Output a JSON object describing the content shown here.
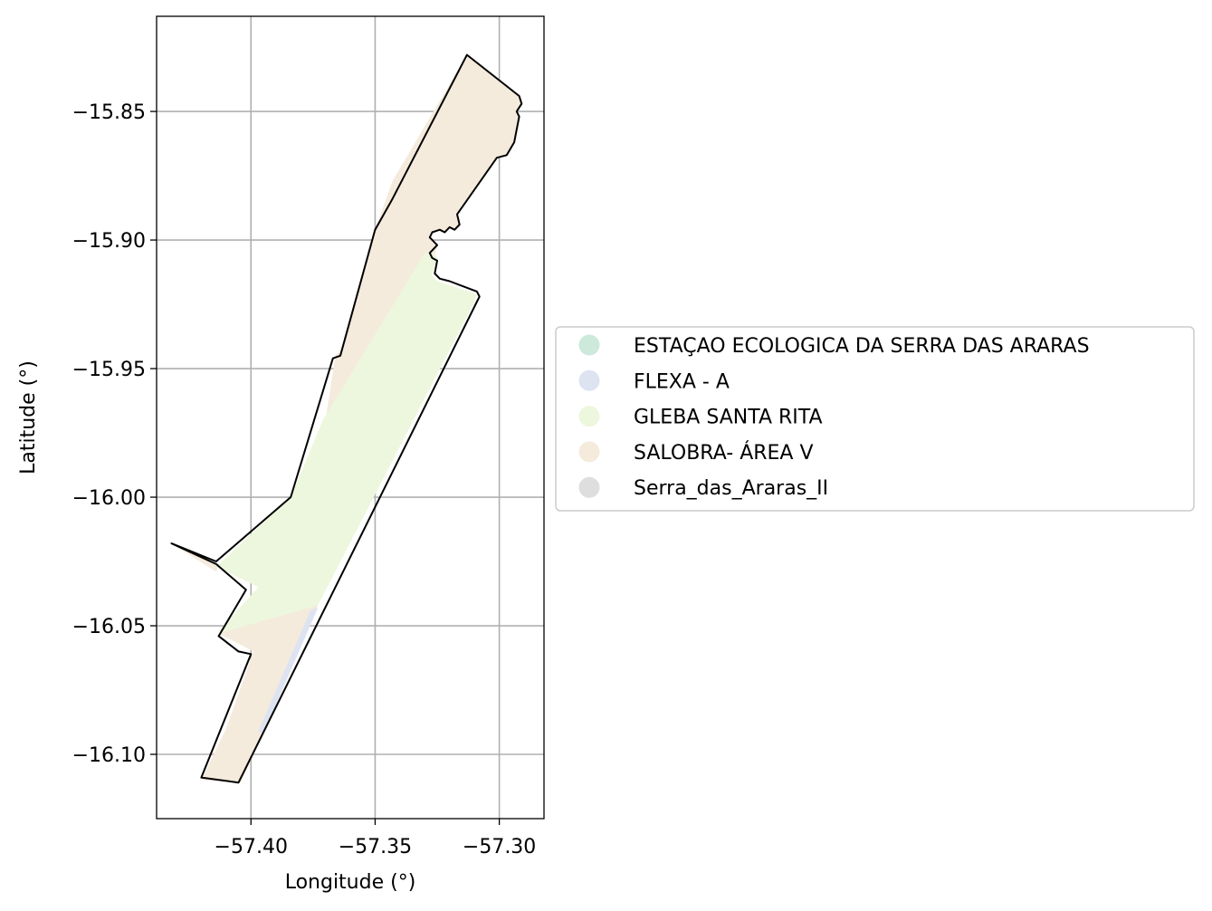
{
  "chart_data": {
    "type": "map",
    "xlabel": "Longitude (°)",
    "ylabel": "Latitude (°)",
    "xlim": [
      -57.438,
      -57.282
    ],
    "ylim": [
      -16.125,
      -15.813
    ],
    "x_ticks": [
      -57.4,
      -57.35,
      -57.3
    ],
    "y_ticks": [
      -15.85,
      -15.9,
      -15.95,
      -16.0,
      -16.05,
      -16.1
    ],
    "x_tick_labels": [
      "−57.40",
      "−57.35",
      "−57.30"
    ],
    "y_tick_labels": [
      "−15.85",
      "−15.90",
      "−15.95",
      "−16.00",
      "−16.05",
      "−16.10"
    ],
    "grid": true,
    "legend_position": "center-right outside",
    "legend": [
      {
        "label": "ESTAÇAO ECOLOGICA DA SERRA DAS ARARAS",
        "color": "#cce9dc"
      },
      {
        "label": "FLEXA - A",
        "color": "#dde3f1"
      },
      {
        "label": "GLEBA SANTA RITA",
        "color": "#edf7dd"
      },
      {
        "label": "SALOBRA- ÁREA V",
        "color": "#f4ebdd"
      },
      {
        "label": "Serra_das_Araras_II",
        "color": "#dedede"
      }
    ],
    "regions": [
      {
        "name": "SALOBRA- ÁREA V",
        "color": "#f4ebdd",
        "coords": [
          [
            -57.313,
            -15.828
          ],
          [
            -57.292,
            -15.844
          ],
          [
            -57.291,
            -15.847
          ],
          [
            -57.293,
            -15.85
          ],
          [
            -57.292,
            -15.852
          ],
          [
            -57.294,
            -15.862
          ],
          [
            -57.297,
            -15.867
          ],
          [
            -57.301,
            -15.868
          ],
          [
            -57.317,
            -15.89
          ],
          [
            -57.316,
            -15.894
          ],
          [
            -57.318,
            -15.896
          ],
          [
            -57.32,
            -15.895
          ],
          [
            -57.322,
            -15.897
          ],
          [
            -57.324,
            -15.896
          ],
          [
            -57.327,
            -15.897
          ],
          [
            -57.328,
            -15.899
          ],
          [
            -57.325,
            -15.903
          ],
          [
            -57.329,
            -15.913
          ],
          [
            -57.33,
            -15.92
          ],
          [
            -57.342,
            -15.957
          ],
          [
            -57.37,
            -15.97
          ],
          [
            -57.366,
            -15.945
          ],
          [
            -57.363,
            -15.942
          ],
          [
            -57.35,
            -15.896
          ],
          [
            -57.343,
            -15.877
          ]
        ]
      },
      {
        "name": "GLEBA SANTA RITA",
        "color": "#edf7dd",
        "coords": [
          [
            -57.33,
            -15.905
          ],
          [
            -57.325,
            -15.906
          ],
          [
            -57.327,
            -15.914
          ],
          [
            -57.325,
            -15.916
          ],
          [
            -57.309,
            -15.921
          ],
          [
            -57.31,
            -15.924
          ],
          [
            -57.373,
            -16.042
          ],
          [
            -57.406,
            -16.055
          ],
          [
            -57.413,
            -16.052
          ],
          [
            -57.397,
            -16.035
          ],
          [
            -57.414,
            -16.027
          ],
          [
            -57.384,
            -16.0
          ],
          [
            -57.371,
            -15.97
          ]
        ]
      },
      {
        "name": "SALOBRA- ÁREA V",
        "color": "#f4ebdd",
        "coords": [
          [
            -57.413,
            -16.026
          ],
          [
            -57.432,
            -16.018
          ],
          [
            -57.414,
            -16.029
          ]
        ]
      },
      {
        "name": "SALOBRA- ÁREA V",
        "color": "#f4ebdd",
        "coords": [
          [
            -57.413,
            -16.053
          ],
          [
            -57.373,
            -16.042
          ],
          [
            -57.404,
            -16.111
          ],
          [
            -57.42,
            -16.11
          ],
          [
            -57.41,
            -16.09
          ],
          [
            -57.399,
            -16.06
          ]
        ]
      },
      {
        "name": "FLEXA - A",
        "color": "#dde3f1",
        "coords": [
          [
            -57.373,
            -16.043
          ],
          [
            -57.376,
            -16.044
          ],
          [
            -57.397,
            -16.091
          ],
          [
            -57.395,
            -16.092
          ]
        ]
      }
    ],
    "outline": [
      [
        -57.313,
        -15.828
      ],
      [
        -57.292,
        -15.844
      ],
      [
        -57.291,
        -15.847
      ],
      [
        -57.293,
        -15.85
      ],
      [
        -57.292,
        -15.852
      ],
      [
        -57.294,
        -15.862
      ],
      [
        -57.297,
        -15.867
      ],
      [
        -57.301,
        -15.868
      ],
      [
        -57.317,
        -15.89
      ],
      [
        -57.316,
        -15.894
      ],
      [
        -57.318,
        -15.896
      ],
      [
        -57.32,
        -15.895
      ],
      [
        -57.322,
        -15.897
      ],
      [
        -57.324,
        -15.896
      ],
      [
        -57.327,
        -15.897
      ],
      [
        -57.328,
        -15.899
      ],
      [
        -57.325,
        -15.902
      ],
      [
        -57.328,
        -15.905
      ],
      [
        -57.327,
        -15.907
      ],
      [
        -57.325,
        -15.908
      ],
      [
        -57.326,
        -15.913
      ],
      [
        -57.324,
        -15.915
      ],
      [
        -57.32,
        -15.916
      ],
      [
        -57.309,
        -15.92
      ],
      [
        -57.308,
        -15.922
      ],
      [
        -57.405,
        -16.111
      ],
      [
        -57.42,
        -16.109
      ],
      [
        -57.4,
        -16.061
      ],
      [
        -57.405,
        -16.06
      ],
      [
        -57.413,
        -16.054
      ],
      [
        -57.402,
        -16.036
      ],
      [
        -57.414,
        -16.026
      ],
      [
        -57.432,
        -16.018
      ],
      [
        -57.414,
        -16.025
      ],
      [
        -57.384,
        -16.0
      ],
      [
        -57.367,
        -15.946
      ],
      [
        -57.364,
        -15.945
      ],
      [
        -57.35,
        -15.896
      ],
      [
        -57.343,
        -15.884
      ]
    ]
  }
}
